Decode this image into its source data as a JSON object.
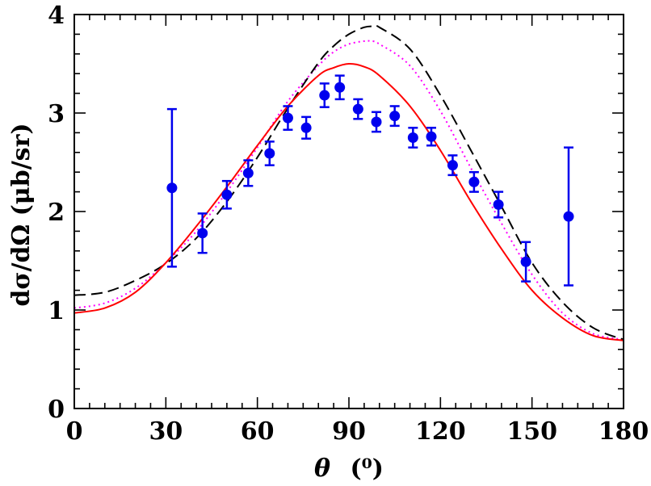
{
  "chart_data": {
    "type": "scatter",
    "title": "",
    "xlabel_symbol": "θ",
    "xlabel_unit": "(⁰)",
    "ylabel": "dσ/dΩ (μb/sr)",
    "xlim": [
      0,
      180
    ],
    "ylim": [
      0,
      4
    ],
    "x_ticks": [
      0,
      30,
      60,
      90,
      120,
      150,
      180
    ],
    "y_ticks": [
      0,
      1,
      2,
      3,
      4
    ],
    "x_tick_labels": [
      "0",
      "30",
      "60",
      "90",
      "120",
      "150",
      "180"
    ],
    "y_tick_labels": [
      "0",
      "1",
      "2",
      "3",
      "4"
    ],
    "x_minor_step": 5,
    "y_minor_step": 0.2,
    "grid": false,
    "colors": {
      "data": "#0000ee",
      "solid": "#ff0000",
      "dashed": "#000000",
      "dotted": "#ff00ff"
    },
    "data_points": [
      {
        "x": 32,
        "y": 2.24,
        "err": 0.8
      },
      {
        "x": 42,
        "y": 1.78,
        "err": 0.2
      },
      {
        "x": 50,
        "y": 2.17,
        "err": 0.14
      },
      {
        "x": 57,
        "y": 2.39,
        "err": 0.13
      },
      {
        "x": 64,
        "y": 2.59,
        "err": 0.12
      },
      {
        "x": 70,
        "y": 2.95,
        "err": 0.12
      },
      {
        "x": 76,
        "y": 2.85,
        "err": 0.11
      },
      {
        "x": 82,
        "y": 3.18,
        "err": 0.12
      },
      {
        "x": 87,
        "y": 3.26,
        "err": 0.12
      },
      {
        "x": 93,
        "y": 3.04,
        "err": 0.1
      },
      {
        "x": 99,
        "y": 2.91,
        "err": 0.1
      },
      {
        "x": 105,
        "y": 2.97,
        "err": 0.1
      },
      {
        "x": 111,
        "y": 2.75,
        "err": 0.1
      },
      {
        "x": 117,
        "y": 2.76,
        "err": 0.09
      },
      {
        "x": 124,
        "y": 2.47,
        "err": 0.1
      },
      {
        "x": 131,
        "y": 2.3,
        "err": 0.1
      },
      {
        "x": 139,
        "y": 2.07,
        "err": 0.13
      },
      {
        "x": 148,
        "y": 1.49,
        "err": 0.2
      },
      {
        "x": 162,
        "y": 1.95,
        "err": 0.7
      }
    ],
    "series": [
      {
        "name": "solid",
        "style": "solid",
        "x": [
          0,
          10,
          20,
          30,
          40,
          50,
          60,
          70,
          80,
          85,
          90,
          95,
          100,
          110,
          120,
          130,
          140,
          150,
          160,
          170,
          180
        ],
        "y": [
          0.97,
          1.02,
          1.18,
          1.48,
          1.85,
          2.25,
          2.67,
          3.07,
          3.38,
          3.46,
          3.5,
          3.47,
          3.38,
          3.07,
          2.62,
          2.1,
          1.62,
          1.2,
          0.92,
          0.74,
          0.69
        ]
      },
      {
        "name": "dashed",
        "style": "dashed",
        "x": [
          0,
          10,
          20,
          30,
          40,
          50,
          60,
          70,
          80,
          85,
          90,
          95,
          98,
          100,
          110,
          120,
          130,
          140,
          150,
          160,
          170,
          180
        ],
        "y": [
          1.15,
          1.18,
          1.3,
          1.47,
          1.73,
          2.1,
          2.55,
          3.05,
          3.51,
          3.68,
          3.8,
          3.87,
          3.88,
          3.87,
          3.65,
          3.18,
          2.62,
          2.05,
          1.48,
          1.08,
          0.82,
          0.7
        ]
      },
      {
        "name": "dotted",
        "style": "dotted",
        "x": [
          0,
          10,
          20,
          30,
          40,
          50,
          60,
          70,
          80,
          85,
          90,
          95,
          97,
          100,
          110,
          120,
          130,
          140,
          150,
          160,
          170,
          180
        ],
        "y": [
          1.02,
          1.07,
          1.22,
          1.48,
          1.8,
          2.2,
          2.65,
          3.12,
          3.48,
          3.62,
          3.7,
          3.73,
          3.73,
          3.7,
          3.48,
          3.02,
          2.44,
          1.88,
          1.36,
          0.97,
          0.76,
          0.7
        ]
      }
    ]
  }
}
